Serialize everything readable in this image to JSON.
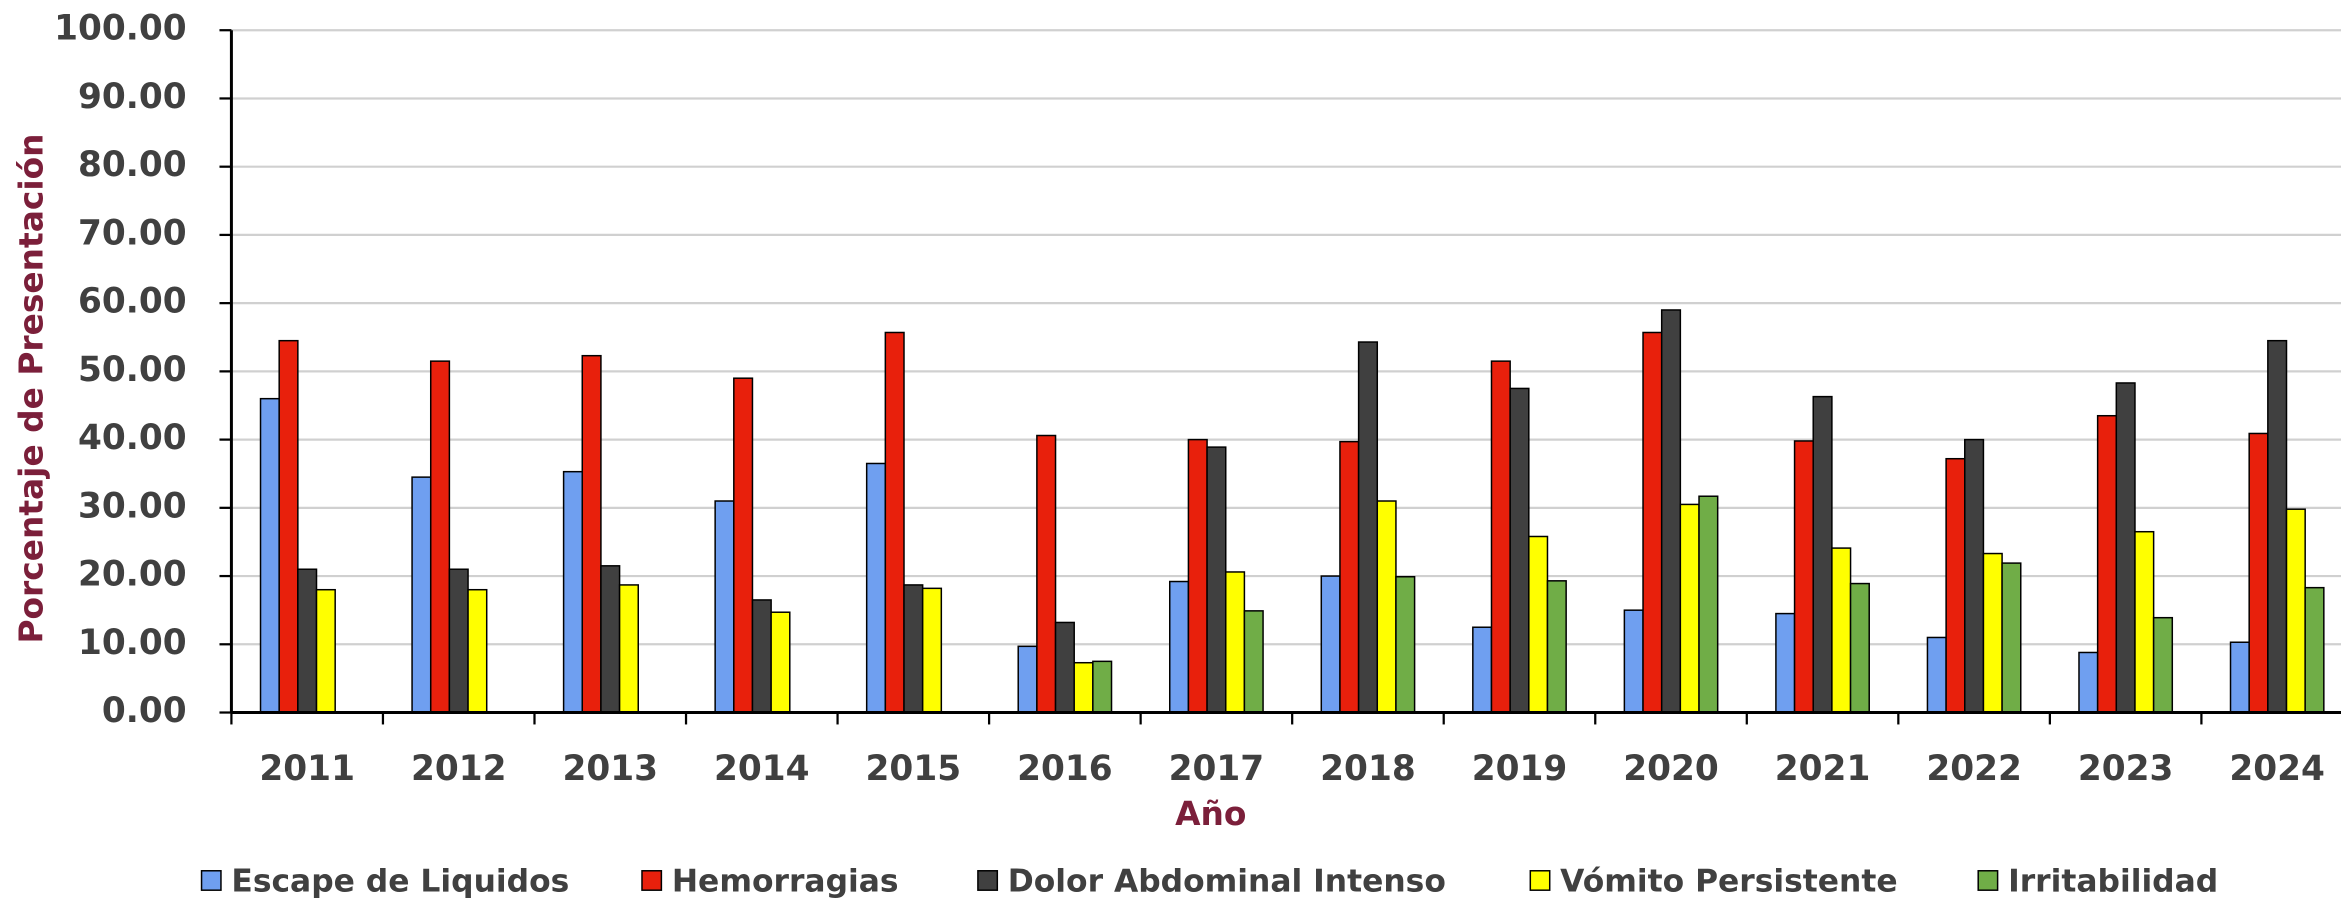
{
  "chart_data": {
    "type": "bar",
    "y_label": "Porcentaje de Presentación",
    "x_label": "Año",
    "categories": [
      "2011",
      "2012",
      "2013",
      "2014",
      "2015",
      "2016",
      "2017",
      "2018",
      "2019",
      "2020",
      "2021",
      "2022",
      "2023",
      "2024"
    ],
    "series": [
      {
        "name": "Escape de Liquidos",
        "color": "#6f9ff0",
        "values": [
          46,
          34.5,
          35.3,
          31,
          36.5,
          9.7,
          19.2,
          20,
          12.5,
          15,
          14.5,
          11,
          8.8,
          10.3
        ]
      },
      {
        "name": "Hemorragias",
        "color": "#e8200c",
        "values": [
          54.5,
          51.5,
          52.3,
          49,
          55.7,
          40.6,
          40,
          39.7,
          51.5,
          55.7,
          39.8,
          37.2,
          43.5,
          40.9
        ]
      },
      {
        "name": "Dolor Abdominal Intenso",
        "color": "#404040",
        "values": [
          21,
          21,
          21.5,
          16.5,
          18.7,
          13.2,
          38.9,
          54.3,
          47.5,
          59,
          46.3,
          40,
          48.3,
          54.5
        ]
      },
      {
        "name": "Vómito Persistente",
        "color": "#ffff00",
        "values": [
          18,
          18,
          18.7,
          14.7,
          18.2,
          7.3,
          20.6,
          31,
          25.8,
          30.5,
          24.1,
          23.3,
          26.5,
          29.8
        ]
      },
      {
        "name": "Irritabilidad",
        "color": "#70ad47",
        "values": [
          null,
          null,
          null,
          null,
          null,
          7.5,
          14.9,
          19.9,
          19.3,
          31.7,
          18.9,
          21.9,
          13.9,
          18.3
        ]
      }
    ],
    "ylim": [
      0,
      100
    ],
    "yticks": [
      {
        "value": 0,
        "label": "0.00"
      },
      {
        "value": 10,
        "label": "10.00"
      },
      {
        "value": 20,
        "label": "20.00"
      },
      {
        "value": 30,
        "label": "30.00"
      },
      {
        "value": 40,
        "label": "40.00"
      },
      {
        "value": 50,
        "label": "50.00"
      },
      {
        "value": 60,
        "label": "60.00"
      },
      {
        "value": 70,
        "label": "70.00"
      },
      {
        "value": 80,
        "label": "80.00"
      },
      {
        "value": 90,
        "label": "90.00"
      },
      {
        "value": 100,
        "label": "100.00"
      }
    ],
    "grid": true,
    "legend": "bottom"
  }
}
